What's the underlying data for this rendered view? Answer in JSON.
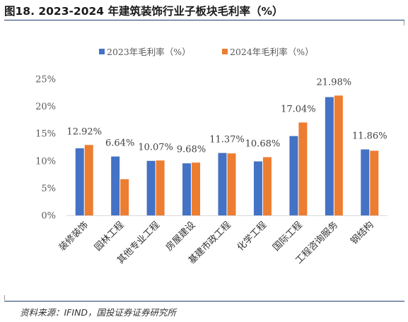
{
  "title": "图18. 2023-2024 年建筑装饰行业子板块毛利率（%）",
  "source": "资料来源：IFIND，国投证券证券研究所",
  "colors": {
    "series1": "#4472C4",
    "series2": "#ED7D31"
  },
  "chart_data": {
    "type": "bar",
    "categories": [
      "装修装饰",
      "园林工程",
      "其他专业工程",
      "房屋建设",
      "基建市政工程",
      "化学工程",
      "国际工程",
      "工程咨询服务",
      "钢结构"
    ],
    "series": [
      {
        "name": "2023年毛利率（%）",
        "values": [
          12.3,
          10.8,
          10.0,
          9.55,
          11.45,
          9.9,
          14.55,
          21.7,
          12.1
        ]
      },
      {
        "name": "2024年毛利率（%）",
        "values": [
          12.92,
          6.64,
          10.07,
          9.68,
          11.37,
          10.68,
          17.04,
          21.98,
          11.86
        ]
      }
    ],
    "data_labels": [
      "12.92%",
      "6.64%",
      "10.07%",
      "9.68%",
      "11.37%",
      "10.68%",
      "17.04%",
      "21.98%",
      "11.86%"
    ],
    "yticks": [
      "0%",
      "5%",
      "10%",
      "15%",
      "20%",
      "25%"
    ],
    "ylim": [
      0,
      25
    ],
    "grid": false,
    "legend": "top-center"
  }
}
